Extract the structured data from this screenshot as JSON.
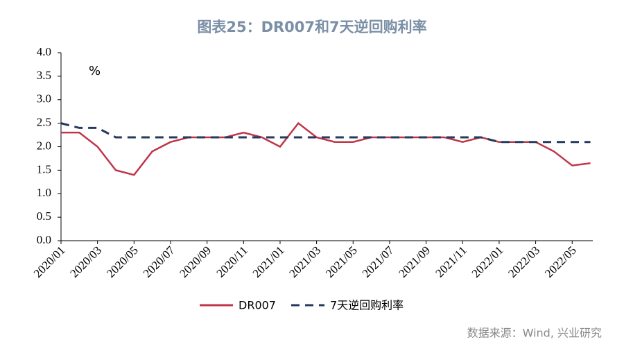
{
  "chart_data": {
    "type": "line",
    "title": "图表25：DR007和7天逆回购利率",
    "unit_label": "%",
    "source": "数据来源：Wind, 兴业研究",
    "categories": [
      "2020/01",
      null,
      "2020/03",
      null,
      "2020/05",
      null,
      "2020/07",
      null,
      "2020/09",
      null,
      "2020/11",
      null,
      "2021/01",
      null,
      "2021/03",
      null,
      "2021/05",
      null,
      "2021/07",
      null,
      "2021/09",
      null,
      "2021/11",
      null,
      "2022/01",
      null,
      "2022/03",
      null,
      "2022/05",
      null
    ],
    "series": [
      {
        "name": "DR007",
        "color": "#c0354a",
        "dash": false,
        "values": [
          2.3,
          2.3,
          2.0,
          1.5,
          1.4,
          1.9,
          2.1,
          2.2,
          2.2,
          2.2,
          2.3,
          2.2,
          2.0,
          2.5,
          2.2,
          2.1,
          2.1,
          2.2,
          2.2,
          2.2,
          2.2,
          2.2,
          2.1,
          2.2,
          2.1,
          2.1,
          2.1,
          1.9,
          1.6,
          1.65
        ]
      },
      {
        "name": "7天逆回购利率",
        "color": "#243a5e",
        "dash": true,
        "values": [
          2.5,
          2.4,
          2.4,
          2.2,
          2.2,
          2.2,
          2.2,
          2.2,
          2.2,
          2.2,
          2.2,
          2.2,
          2.2,
          2.2,
          2.2,
          2.2,
          2.2,
          2.2,
          2.2,
          2.2,
          2.2,
          2.2,
          2.2,
          2.2,
          2.1,
          2.1,
          2.1,
          2.1,
          2.1,
          2.1
        ]
      }
    ],
    "ylim": [
      0,
      4
    ],
    "yticks": [
      {
        "value": 0,
        "label": "0.0"
      },
      {
        "value": 0.5,
        "label": "0.5"
      },
      {
        "value": 1,
        "label": "1.0"
      },
      {
        "value": 1.5,
        "label": "1.5"
      },
      {
        "value": 2,
        "label": "2.0"
      },
      {
        "value": 2.5,
        "label": "2.5"
      },
      {
        "value": 3,
        "label": "3.0"
      },
      {
        "value": 3.5,
        "label": "3.5"
      },
      {
        "value": 4,
        "label": "4.0"
      }
    ],
    "grid": false,
    "legend": "bottom"
  }
}
